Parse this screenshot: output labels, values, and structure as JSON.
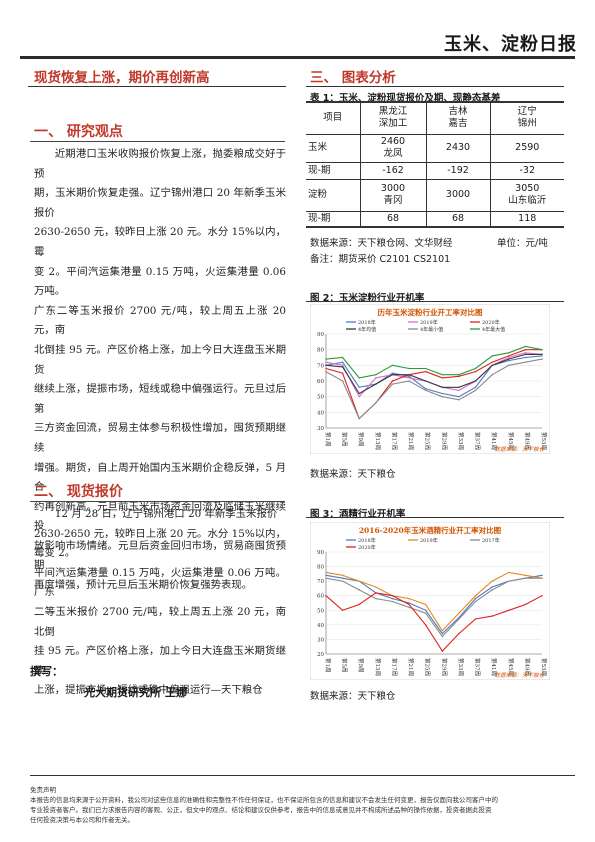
{
  "header": {
    "title": "玉米、淀粉日报"
  },
  "left": {
    "headline": "现货恢复上涨，期价再创新高",
    "s1": {
      "title": "一、  研究观点",
      "paragraph": [
        "近期港口玉米收购报价恢复上涨，抛委粮成交好于预",
        "期，玉米期价恢复走强。辽宁锦州港口 20 年新季玉米报价",
        "2630-2650 元，较昨日上涨 20 元。水分 15%以内，霉",
        "变 2。平间汽运集港量 0.15 万吨，火运集港量 0.06 万吨。",
        "广东二等玉米报价 2700 元/吨，较上周五上涨 20 元，南",
        "北倒挂 95 元。产区价格上涨，加上今日大连盘玉米期货",
        "继续上涨，提振市场，短线或稳中偏强运行。元旦过后第",
        "三方资金回流，贸易主体参与积极性增加，囤货预期继续",
        "增强。期货，自上周开始国内玉米期价企稳反弹，5 月合",
        "约再创新高。元旦前玉米市场资金回流及临储玉米继续投",
        "放影响市场情绪。元旦后资金回归市场，贸易商囤货预期",
        "再度增强，预计元旦后玉米期价恢复强势表现。"
      ]
    },
    "s2": {
      "title": "二、  现货报价",
      "paragraph": [
        "12 月 28 日，辽宁锦州港口 20 年新季玉米报价",
        "2630-2650 元，较昨日上涨 20 元。水分 15%以内，霉变 2。",
        "平间汽运集港量 0.15 万吨，火运集港量 0.06 万吨。广东",
        "二等玉米报价 2700 元/吨，较上周五上涨 20 元，南北倒",
        "挂 95 元。产区价格上涨，加上今日大连盘玉米期货继续",
        "上涨，提振市场，短线或稳中偏强运行—天下粮仓"
      ]
    },
    "author_label": "撰写：",
    "author": "光大期货研究所  王娜"
  },
  "right": {
    "s3_title": "三、  图表分析",
    "table1": {
      "caption": "表 1：玉米、淀粉现货报价及期、现静态基差",
      "headers": [
        "项目",
        "黑龙江\n深加工",
        "吉林\n嘉吉",
        "辽宁\n锦州"
      ],
      "rows": [
        [
          "玉米",
          "2460\n龙凤",
          "2430",
          "2590"
        ],
        [
          "现-期",
          "-162",
          "-192",
          "-32"
        ],
        [
          "淀粉",
          "3000\n青冈",
          "3000",
          "3050\n山东临沂"
        ],
        [
          "现-期",
          "68",
          "68",
          "118"
        ]
      ],
      "source_left": "数据来源：天下粮仓网、文华财经",
      "source_right": "单位：元/吨",
      "note": "备注：期货采价 C2101   CS2101"
    },
    "fig2": {
      "label": "图 2：玉米淀粉行业开机率",
      "source": "数据来源：天下粮仓"
    },
    "fig3": {
      "label": "图 3：酒精行业开机率",
      "source": "数据来源：天下粮仓"
    }
  },
  "chart_data": [
    {
      "type": "line",
      "title": "历年玉米淀粉行业开工率对比图",
      "ylim": [
        30,
        90
      ],
      "yticks": [
        "90",
        "80",
        "70",
        "60",
        "50",
        "40",
        "30"
      ],
      "x": [
        "第1周",
        "第5周",
        "第9周",
        "第13周",
        "第17周",
        "第21周",
        "第25周",
        "第29周",
        "第33周",
        "第37周",
        "第41周",
        "第45周",
        "第49周",
        "第53周"
      ],
      "series": [
        {
          "name": "2018年",
          "color": "#4a78c2",
          "values": [
            70,
            72,
            56,
            58,
            65,
            63,
            55,
            52,
            50,
            56,
            70,
            73,
            75,
            76
          ]
        },
        {
          "name": "2019年",
          "color": "#d66bd1",
          "values": [
            72,
            70,
            50,
            62,
            64,
            62,
            60,
            56,
            54,
            60,
            70,
            75,
            78,
            77
          ]
        },
        {
          "name": "2020年",
          "color": "#e02020",
          "values": [
            68,
            65,
            36,
            46,
            60,
            64,
            66,
            62,
            63,
            66,
            72,
            76,
            80,
            80
          ]
        },
        {
          "name": "4年均值",
          "color": "#3a3a3a",
          "values": [
            70,
            69,
            52,
            58,
            64,
            64,
            60,
            56,
            56,
            60,
            70,
            74,
            77,
            77
          ]
        },
        {
          "name": "4年最小值",
          "color": "#8a8a8a",
          "values": [
            66,
            60,
            36,
            46,
            58,
            60,
            54,
            50,
            48,
            54,
            64,
            70,
            72,
            74
          ]
        },
        {
          "name": "4年最大值",
          "color": "#2a9a3a",
          "values": [
            74,
            75,
            62,
            64,
            70,
            68,
            68,
            64,
            64,
            68,
            76,
            78,
            82,
            80
          ]
        }
      ],
      "watermark": "数据来源：天下粮仓"
    },
    {
      "type": "line",
      "title": "2016-2020年玉米酒精行业开工率对比图",
      "ylim": [
        20,
        90
      ],
      "yticks": [
        "90",
        "80",
        "70",
        "60",
        "50",
        "40",
        "30",
        "20"
      ],
      "x": [
        "第1周",
        "第5周",
        "第9周",
        "第13周",
        "第17周",
        "第21周",
        "第25周",
        "第29周",
        "第33周",
        "第37周",
        "第41周",
        "第45周",
        "第49周",
        "第53周"
      ],
      "series": [
        {
          "name": "2018年",
          "color": "#4a78c2",
          "values": [
            74,
            72,
            70,
            62,
            58,
            55,
            50,
            34,
            45,
            58,
            66,
            70,
            72,
            74
          ]
        },
        {
          "name": "2019年",
          "color": "#e08a1e",
          "values": [
            76,
            74,
            70,
            66,
            60,
            58,
            54,
            36,
            48,
            60,
            70,
            76,
            74,
            72
          ]
        },
        {
          "name": "2017年",
          "color": "#8a8a8a",
          "values": [
            72,
            70,
            64,
            58,
            56,
            52,
            48,
            32,
            44,
            56,
            64,
            70,
            72,
            72
          ]
        },
        {
          "name": "2020年",
          "color": "#e02020",
          "values": [
            60,
            50,
            54,
            62,
            60,
            54,
            40,
            22,
            34,
            44,
            46,
            50,
            54,
            60
          ]
        }
      ],
      "watermark": "数据来源：天下粮仓"
    }
  ],
  "disclaimer": {
    "title": "免责声明",
    "text": [
      "本报告的信息均来源于公开资料，我公司对这些信息的准确性和完整性不作任何保证，也不保证所包含的信息和建议不会发生任何变更，报告仅面向我公司客户中的",
      "专业投资者客户。我们已力求报告内容的客观、公正，但文中的观点、结论和建议仅供参考，报告中的信息或意见并不构成所述品种的操作依据，投资者据此投资",
      "任何投资决策与本公司和作者无关。"
    ]
  }
}
